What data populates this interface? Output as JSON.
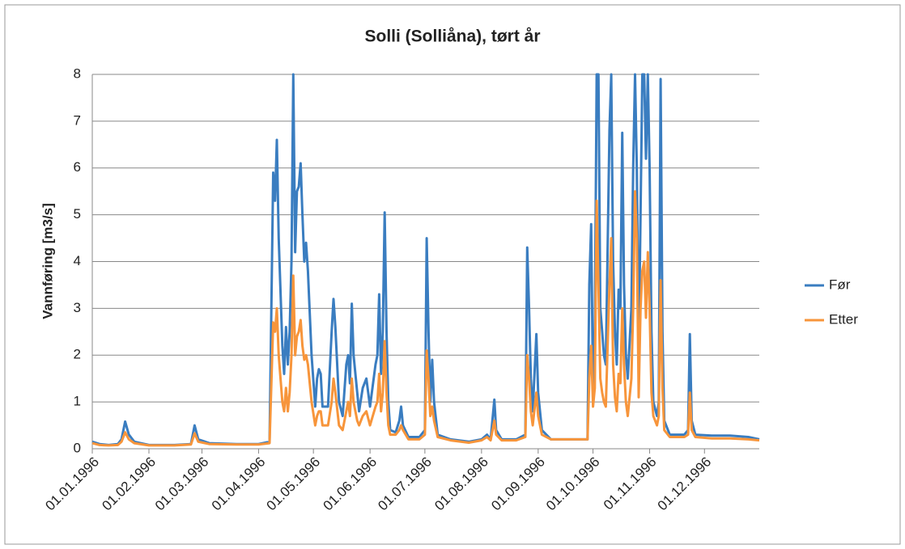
{
  "chart_data": {
    "type": "line",
    "title": "Solli (Solliåna), tørt år",
    "ylabel": "Vannføring [m3/s]",
    "x": [
      "01.01.1996",
      "05.01.1996",
      "10.01.1996",
      "15.01.1996",
      "17.01.1996",
      "19.01.1996",
      "21.01.1996",
      "24.01.1996",
      "01.02.1996",
      "15.02.1996",
      "24.02.1996",
      "26.02.1996",
      "28.02.1996",
      "05.03.1996",
      "20.03.1996",
      "01.04.1996",
      "07.04.1996",
      "09.04.1996",
      "10.04.1996",
      "11.04.1996",
      "12.04.1996",
      "14.04.1996",
      "15.04.1996",
      "16.04.1996",
      "17.04.1996",
      "18.04.1996",
      "19.04.1996",
      "20.04.1996",
      "21.04.1996",
      "22.04.1996",
      "23.04.1996",
      "24.04.1996",
      "25.04.1996",
      "26.04.1996",
      "27.04.1996",
      "28.04.1996",
      "30.04.1996",
      "02.05.1996",
      "03.05.1996",
      "04.05.1996",
      "05.05.1996",
      "06.05.1996",
      "09.05.1996",
      "11.05.1996",
      "12.05.1996",
      "13.05.1996",
      "15.05.1996",
      "17.05.1996",
      "19.05.1996",
      "20.05.1996",
      "21.05.1996",
      "22.05.1996",
      "23.05.1996",
      "25.05.1996",
      "26.05.1996",
      "28.05.1996",
      "30.05.1996",
      "01.06.1996",
      "04.06.1996",
      "05.06.1996",
      "06.06.1996",
      "07.06.1996",
      "08.06.1996",
      "09.06.1996",
      "10.06.1996",
      "11.06.1996",
      "12.06.1996",
      "15.06.1996",
      "17.06.1996",
      "18.06.1996",
      "19.06.1996",
      "22.06.1996",
      "28.06.1996",
      "01.07.1996",
      "02.07.1996",
      "03.07.1996",
      "04.07.1996",
      "05.07.1996",
      "06.07.1996",
      "08.07.1996",
      "15.07.1996",
      "25.07.1996",
      "01.08.1996",
      "04.08.1996",
      "06.08.1996",
      "08.08.1996",
      "09.08.1996",
      "12.08.1996",
      "20.08.1996",
      "25.08.1996",
      "26.08.1996",
      "27.08.1996",
      "28.08.1996",
      "29.08.1996",
      "31.08.1996",
      "01.09.1996",
      "03.09.1996",
      "08.09.1996",
      "28.09.1996",
      "29.09.1996",
      "30.09.1996",
      "01.10.1996",
      "02.10.1996",
      "03.10.1996",
      "04.10.1996",
      "05.10.1996",
      "06.10.1996",
      "07.10.1996",
      "08.10.1996",
      "10.10.1996",
      "11.10.1996",
      "12.10.1996",
      "13.10.1996",
      "14.10.1996",
      "15.10.1996",
      "16.10.1996",
      "17.10.1996",
      "18.10.1996",
      "19.10.1996",
      "20.10.1996",
      "22.10.1996",
      "23.10.1996",
      "24.10.1996",
      "25.10.1996",
      "26.10.1996",
      "27.10.1996",
      "28.10.1996",
      "29.10.1996",
      "30.10.1996",
      "31.10.1996",
      "01.11.1996",
      "02.11.1996",
      "03.11.1996",
      "05.11.1996",
      "06.11.1996",
      "07.11.1996",
      "08.11.1996",
      "09.11.1996",
      "12.11.1996",
      "20.11.1996",
      "22.11.1996",
      "23.11.1996",
      "24.11.1996",
      "26.11.1996",
      "05.12.1996",
      "15.12.1996",
      "25.12.1996",
      "31.12.1996"
    ],
    "series": [
      {
        "name": "Før",
        "color": "#3a7dc0",
        "values": [
          0.15,
          0.1,
          0.08,
          0.1,
          0.2,
          0.58,
          0.3,
          0.15,
          0.08,
          0.08,
          0.1,
          0.5,
          0.2,
          0.12,
          0.1,
          0.1,
          0.15,
          5.9,
          5.3,
          6.6,
          4.5,
          2.2,
          1.6,
          2.6,
          1.8,
          2.5,
          4.0,
          8.0,
          4.2,
          5.5,
          5.6,
          6.1,
          5.0,
          4.0,
          4.4,
          3.8,
          2.0,
          0.9,
          1.5,
          1.7,
          1.6,
          0.9,
          0.9,
          2.5,
          3.2,
          2.6,
          1.0,
          0.7,
          1.8,
          2.0,
          1.4,
          3.1,
          2.0,
          1.2,
          0.8,
          1.3,
          1.5,
          0.9,
          1.8,
          2.0,
          3.3,
          1.6,
          2.5,
          5.05,
          2.5,
          1.0,
          0.4,
          0.35,
          0.6,
          0.9,
          0.5,
          0.25,
          0.25,
          0.4,
          4.5,
          2.5,
          1.0,
          1.9,
          1.0,
          0.3,
          0.2,
          0.15,
          0.2,
          0.3,
          0.2,
          1.05,
          0.4,
          0.2,
          0.2,
          0.3,
          4.3,
          3.0,
          1.5,
          0.8,
          2.45,
          1.2,
          0.4,
          0.2,
          0.2,
          3.5,
          4.8,
          1.2,
          2.5,
          8.0,
          8.0,
          3.0,
          2.5,
          2.0,
          1.8,
          6.8,
          8.0,
          4.0,
          2.5,
          1.8,
          3.4,
          3.0,
          6.75,
          3.5,
          2.0,
          1.5,
          3.0,
          6.0,
          8.0,
          6.0,
          2.0,
          5.0,
          8.0,
          8.0,
          6.2,
          8.0,
          6.0,
          2.5,
          1.0,
          0.7,
          1.0,
          7.9,
          2.5,
          0.6,
          0.3,
          0.3,
          0.4,
          2.45,
          0.6,
          0.3,
          0.28,
          0.28,
          0.25,
          0.2
        ]
      },
      {
        "name": "Etter",
        "color": "#f7953b",
        "values": [
          0.12,
          0.08,
          0.07,
          0.08,
          0.15,
          0.35,
          0.2,
          0.12,
          0.07,
          0.07,
          0.09,
          0.33,
          0.15,
          0.1,
          0.09,
          0.09,
          0.12,
          2.7,
          2.5,
          3.0,
          2.0,
          1.0,
          0.8,
          1.3,
          0.8,
          1.2,
          2.0,
          3.7,
          2.0,
          2.4,
          2.5,
          2.75,
          2.2,
          1.9,
          2.0,
          1.8,
          1.0,
          0.5,
          0.7,
          0.8,
          0.8,
          0.5,
          0.5,
          1.0,
          1.5,
          1.2,
          0.5,
          0.4,
          0.8,
          1.0,
          0.7,
          1.5,
          1.0,
          0.6,
          0.5,
          0.7,
          0.8,
          0.5,
          0.9,
          1.0,
          1.6,
          0.8,
          1.2,
          2.3,
          1.2,
          0.5,
          0.3,
          0.3,
          0.4,
          0.5,
          0.4,
          0.2,
          0.2,
          0.3,
          2.1,
          1.5,
          0.7,
          0.9,
          0.6,
          0.25,
          0.18,
          0.13,
          0.18,
          0.25,
          0.18,
          0.6,
          0.3,
          0.18,
          0.18,
          0.25,
          2.0,
          1.5,
          0.8,
          0.5,
          1.2,
          0.7,
          0.3,
          0.2,
          0.2,
          1.5,
          2.2,
          0.9,
          1.3,
          5.3,
          3.5,
          1.5,
          1.2,
          1.0,
          0.9,
          3.5,
          4.5,
          1.8,
          1.1,
          0.8,
          1.6,
          1.4,
          3.0,
          1.8,
          1.0,
          0.7,
          1.5,
          3.0,
          5.5,
          4.5,
          1.1,
          3.0,
          3.8,
          4.0,
          2.8,
          4.2,
          3.0,
          1.2,
          0.7,
          0.5,
          0.7,
          3.6,
          1.3,
          0.4,
          0.25,
          0.25,
          0.3,
          1.2,
          0.4,
          0.25,
          0.22,
          0.22,
          0.2,
          0.18
        ]
      }
    ],
    "xlim": [
      "01.01.1996",
      "31.12.1996"
    ],
    "xticks": [
      "01.01.1996",
      "01.02.1996",
      "01.03.1996",
      "01.04.1996",
      "01.05.1996",
      "01.06.1996",
      "01.07.1996",
      "01.08.1996",
      "01.09.1996",
      "01.10.1996",
      "01.11.1996",
      "01.12.1996"
    ],
    "ylim": [
      0,
      8
    ],
    "yticks": [
      0,
      1,
      2,
      3,
      4,
      5,
      6,
      7,
      8
    ],
    "grid": true,
    "legend": "right"
  }
}
